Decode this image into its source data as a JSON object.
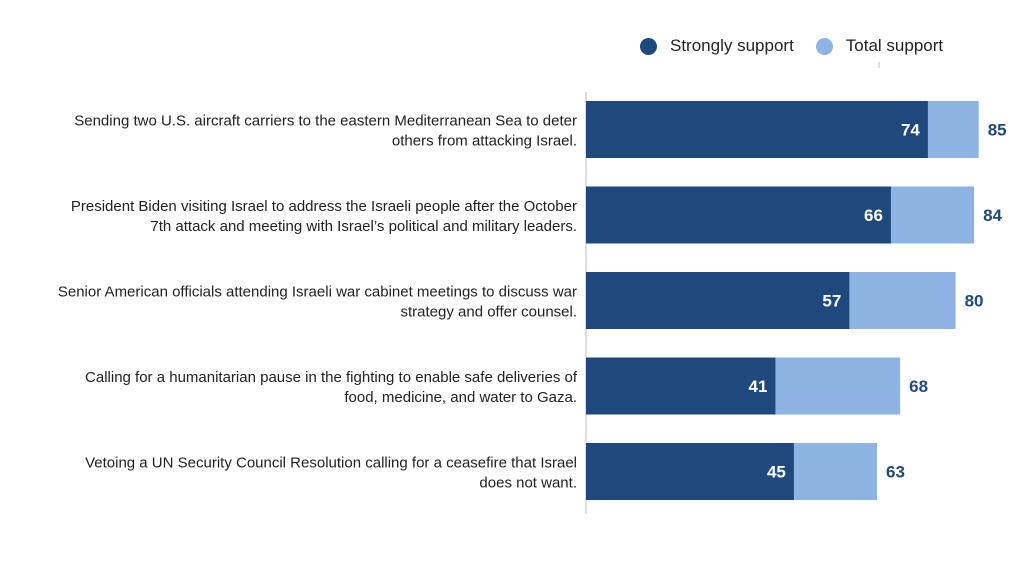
{
  "colors": {
    "strong": "#1f497d",
    "total": "#8eb4e3",
    "label_dark": "#1f497d",
    "label_light": "#ffffff"
  },
  "legend": {
    "strong_label": "Strongly support",
    "total_label": "Total support"
  },
  "chart_data": {
    "type": "bar",
    "orientation": "horizontal",
    "categories": [
      [
        "Sending two U.S. aircraft carriers to the eastern Mediterranean Sea to deter",
        "others from attacking Israel."
      ],
      [
        "President Biden visiting Israel to address the Israeli people after the October",
        "7th attack and meeting with Israel’s political and military leaders."
      ],
      [
        "Senior American officials attending Israeli war cabinet meetings to discuss war",
        "strategy and offer counsel."
      ],
      [
        "Calling for a humanitarian pause in the fighting to enable safe deliveries of",
        "food, medicine, and water to Gaza."
      ],
      [
        "Vetoing a UN Security Council Resolution calling for a ceasefire that Israel",
        "does not want."
      ]
    ],
    "series": [
      {
        "name": "Strongly support",
        "values": [
          74,
          66,
          57,
          41,
          45
        ]
      },
      {
        "name": "Total support",
        "values": [
          85,
          84,
          80,
          68,
          63
        ]
      }
    ],
    "xlim": [
      0,
      100
    ],
    "legend_position": "top-right",
    "grid": false
  }
}
